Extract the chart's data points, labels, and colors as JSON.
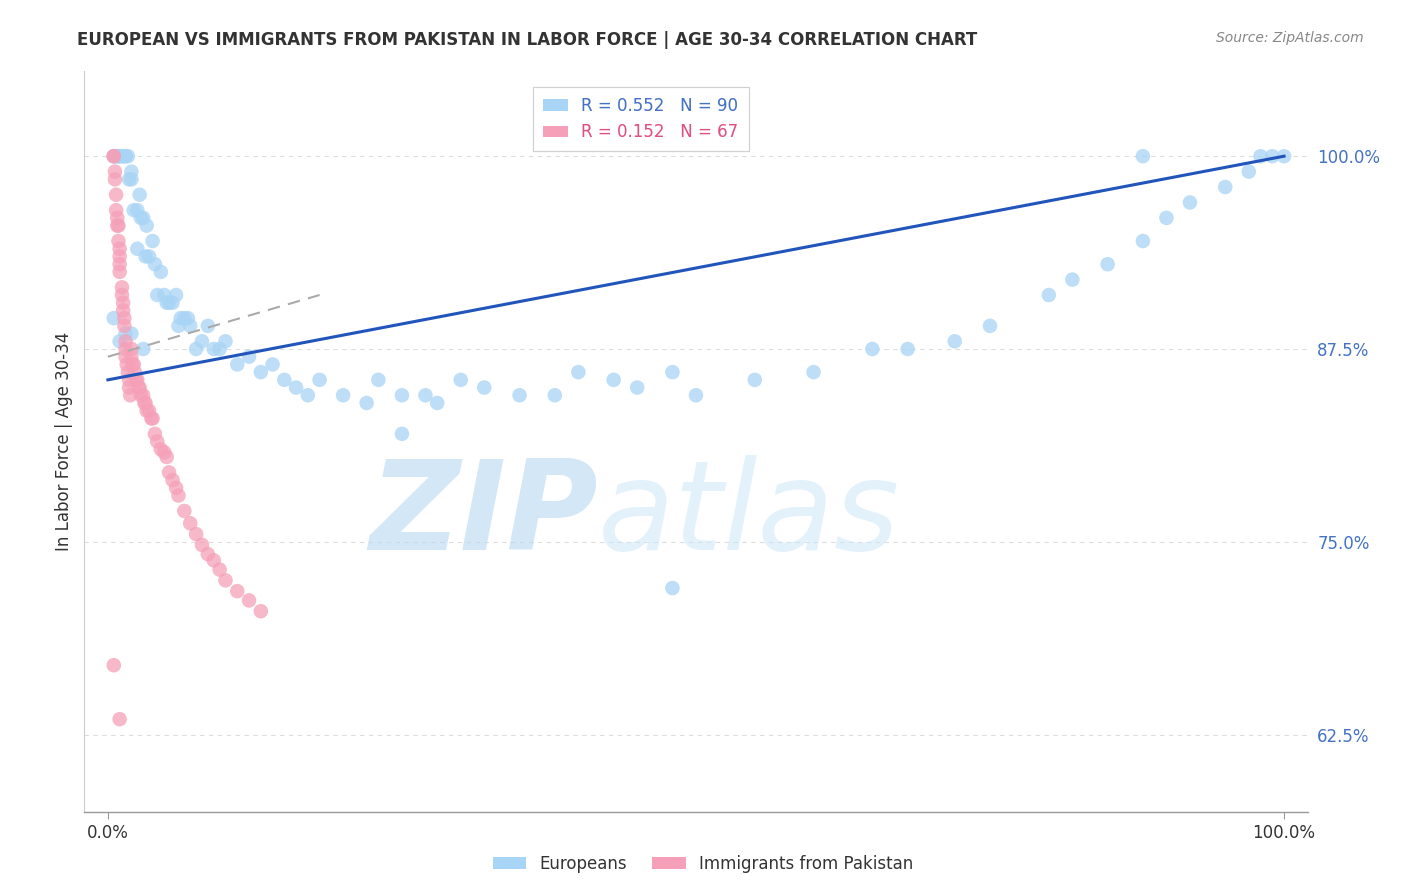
{
  "title": "EUROPEAN VS IMMIGRANTS FROM PAKISTAN IN LABOR FORCE | AGE 30-34 CORRELATION CHART",
  "source": "Source: ZipAtlas.com",
  "ylabel": "In Labor Force | Age 30-34",
  "yticks": [
    0.625,
    0.75,
    0.875,
    1.0
  ],
  "ytick_labels": [
    "62.5%",
    "75.0%",
    "87.5%",
    "100.0%"
  ],
  "xlim": [
    -0.02,
    1.02
  ],
  "ylim": [
    0.575,
    1.055
  ],
  "european_color": "#a8d4f5",
  "pakistan_color": "#f5a0b8",
  "european_line_color": "#2255bb",
  "pakistan_line_color": "#e84070",
  "pakistan_line_style": "dashed",
  "watermark_zip": "ZIP",
  "watermark_atlas": "atlas",
  "european_R": 0.552,
  "european_N": 90,
  "pakistan_R": 0.152,
  "pakistan_N": 67,
  "eu_x": [
    0.005,
    0.007,
    0.008,
    0.01,
    0.01,
    0.012,
    0.013,
    0.015,
    0.015,
    0.017,
    0.018,
    0.02,
    0.02,
    0.022,
    0.025,
    0.025,
    0.027,
    0.028,
    0.03,
    0.032,
    0.033,
    0.035,
    0.038,
    0.04,
    0.042,
    0.045,
    0.048,
    0.05,
    0.052,
    0.055,
    0.058,
    0.06,
    0.062,
    0.065,
    0.068,
    0.07,
    0.075,
    0.08,
    0.085,
    0.09,
    0.095,
    0.1,
    0.11,
    0.12,
    0.13,
    0.14,
    0.15,
    0.16,
    0.17,
    0.18,
    0.2,
    0.22,
    0.23,
    0.25,
    0.27,
    0.28,
    0.3,
    0.32,
    0.35,
    0.38,
    0.4,
    0.43,
    0.45,
    0.48,
    0.5,
    0.55,
    0.6,
    0.65,
    0.68,
    0.72,
    0.75,
    0.8,
    0.82,
    0.85,
    0.88,
    0.9,
    0.92,
    0.95,
    0.97,
    0.98,
    0.99,
    1.0,
    0.005,
    0.01,
    0.015,
    0.02,
    0.03,
    0.25,
    0.48,
    0.88
  ],
  "eu_y": [
    1.0,
    1.0,
    1.0,
    1.0,
    1.0,
    1.0,
    1.0,
    1.0,
    1.0,
    1.0,
    0.985,
    0.99,
    0.985,
    0.965,
    0.965,
    0.94,
    0.975,
    0.96,
    0.96,
    0.935,
    0.955,
    0.935,
    0.945,
    0.93,
    0.91,
    0.925,
    0.91,
    0.905,
    0.905,
    0.905,
    0.91,
    0.89,
    0.895,
    0.895,
    0.895,
    0.89,
    0.875,
    0.88,
    0.89,
    0.875,
    0.875,
    0.88,
    0.865,
    0.87,
    0.86,
    0.865,
    0.855,
    0.85,
    0.845,
    0.855,
    0.845,
    0.84,
    0.855,
    0.845,
    0.845,
    0.84,
    0.855,
    0.85,
    0.845,
    0.845,
    0.86,
    0.855,
    0.85,
    0.86,
    0.845,
    0.855,
    0.86,
    0.875,
    0.875,
    0.88,
    0.89,
    0.91,
    0.92,
    0.93,
    0.945,
    0.96,
    0.97,
    0.98,
    0.99,
    1.0,
    1.0,
    1.0,
    0.895,
    0.88,
    0.885,
    0.885,
    0.875,
    0.82,
    0.72,
    1.0
  ],
  "pk_x": [
    0.005,
    0.005,
    0.006,
    0.006,
    0.007,
    0.007,
    0.008,
    0.008,
    0.009,
    0.009,
    0.01,
    0.01,
    0.01,
    0.01,
    0.012,
    0.012,
    0.013,
    0.013,
    0.014,
    0.014,
    0.015,
    0.015,
    0.015,
    0.016,
    0.017,
    0.018,
    0.018,
    0.019,
    0.02,
    0.02,
    0.021,
    0.022,
    0.023,
    0.024,
    0.025,
    0.026,
    0.027,
    0.028,
    0.03,
    0.031,
    0.032,
    0.033,
    0.035,
    0.037,
    0.038,
    0.04,
    0.042,
    0.045,
    0.048,
    0.05,
    0.052,
    0.055,
    0.058,
    0.06,
    0.065,
    0.07,
    0.075,
    0.08,
    0.085,
    0.09,
    0.095,
    0.1,
    0.11,
    0.12,
    0.13,
    0.005,
    0.01
  ],
  "pk_y": [
    1.0,
    1.0,
    0.99,
    0.985,
    0.975,
    0.965,
    0.96,
    0.955,
    0.955,
    0.945,
    0.94,
    0.935,
    0.93,
    0.925,
    0.915,
    0.91,
    0.905,
    0.9,
    0.895,
    0.89,
    0.88,
    0.875,
    0.87,
    0.865,
    0.86,
    0.855,
    0.85,
    0.845,
    0.875,
    0.87,
    0.865,
    0.865,
    0.86,
    0.855,
    0.855,
    0.85,
    0.85,
    0.845,
    0.845,
    0.84,
    0.84,
    0.835,
    0.835,
    0.83,
    0.83,
    0.82,
    0.815,
    0.81,
    0.808,
    0.805,
    0.795,
    0.79,
    0.785,
    0.78,
    0.77,
    0.762,
    0.755,
    0.748,
    0.742,
    0.738,
    0.732,
    0.725,
    0.718,
    0.712,
    0.705,
    0.67,
    0.635
  ],
  "eu_line_x": [
    0.0,
    1.0
  ],
  "eu_line_y_start": 0.855,
  "eu_line_y_end": 1.0,
  "pk_line_x": [
    0.0,
    0.13
  ],
  "pk_line_y_start": 0.87,
  "pk_line_y_end": 0.91,
  "grid_color": "#dddddd",
  "grid_linestyle": "dotted",
  "title_fontsize": 12,
  "source_fontsize": 10,
  "tick_fontsize": 12,
  "ylabel_fontsize": 12,
  "legend_fontsize": 12,
  "watermark_fontsize_zip": 80,
  "watermark_fontsize_atlas": 80
}
